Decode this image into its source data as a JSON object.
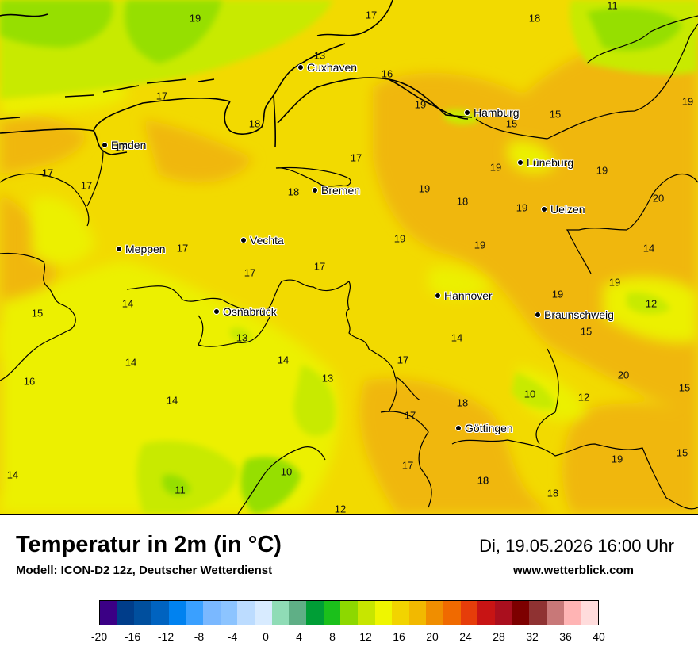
{
  "map": {
    "colors": {
      "orange": "#f0b70f",
      "yellow": "#f2da00",
      "lime": "#ecf000",
      "green": "#c8ea00",
      "darkgreen": "#96df00"
    },
    "cities": [
      {
        "name": "Cuxhaven",
        "id": "cuxhaven"
      },
      {
        "name": "Hamburg",
        "id": "hamburg"
      },
      {
        "name": "Emden",
        "id": "emden"
      },
      {
        "name": "Lüneburg",
        "id": "lueneburg"
      },
      {
        "name": "Bremen",
        "id": "bremen"
      },
      {
        "name": "Uelzen",
        "id": "uelzen"
      },
      {
        "name": "Vechta",
        "id": "vechta"
      },
      {
        "name": "Meppen",
        "id": "meppen"
      },
      {
        "name": "Hannover",
        "id": "hannover"
      },
      {
        "name": "Osnabrück",
        "id": "osnabrueck"
      },
      {
        "name": "Braunschweig",
        "id": "braunschweig"
      },
      {
        "name": "Göttingen",
        "id": "goettingen"
      }
    ],
    "values": [
      "19",
      "17",
      "18",
      "11",
      "13",
      "16",
      "17",
      "19",
      "15",
      "15",
      "19",
      "18",
      "17",
      "17",
      "17",
      "19",
      "20",
      "17",
      "18",
      "18",
      "19",
      "19",
      "19",
      "17",
      "19",
      "14",
      "17",
      "17",
      "17",
      "14",
      "15",
      "14",
      "19",
      "19",
      "13",
      "12",
      "14",
      "14",
      "17",
      "15",
      "14",
      "13",
      "20",
      "16",
      "18",
      "10",
      "12",
      "15",
      "14",
      "18",
      "17",
      "17",
      "11",
      "10",
      "18",
      "18",
      "12",
      "19",
      "15",
      "17",
      "19"
    ]
  },
  "footer": {
    "title": "Temperatur in 2m (in °C)",
    "subtitle": "Modell: ICON-D2 12z, Deutscher Wetterdienst",
    "datetime": "Di, 19.05.2026 16:00 Uhr",
    "website": "www.wetterblick.com"
  },
  "legend": {
    "colors": [
      "#3b0085",
      "#003d8a",
      "#004f9e",
      "#0063c0",
      "#0082f0",
      "#3aa0ff",
      "#7ab8ff",
      "#8cc4ff",
      "#bcdcff",
      "#d8ebff",
      "#8fdcb6",
      "#5faf86",
      "#009e36",
      "#1bc01b",
      "#8dd800",
      "#c7e600",
      "#eff600",
      "#f2d400",
      "#f2b900",
      "#f08e00",
      "#f06a00",
      "#e63d0a",
      "#c81414",
      "#aa0f1e",
      "#7d0000",
      "#8f3232",
      "#c87878",
      "#ffb4b4",
      "#ffdcdc"
    ],
    "ticks": [
      "-20",
      "-16",
      "-12",
      "-8",
      "-4",
      "0",
      "4",
      "8",
      "12",
      "16",
      "20",
      "24",
      "28",
      "32",
      "36",
      "40"
    ]
  }
}
